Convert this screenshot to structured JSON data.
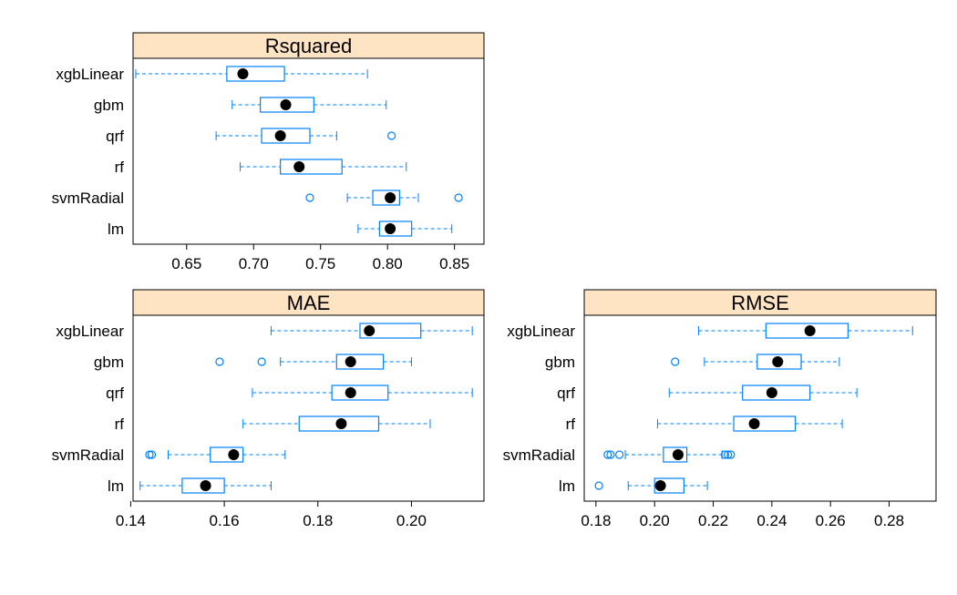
{
  "strip_color": "#ffe4c4",
  "box_color": "#0080ff",
  "dot_color": "#000000",
  "models": [
    "xgbLinear",
    "gbm",
    "qrf",
    "rf",
    "svmRadial",
    "lm"
  ],
  "chart_data": [
    {
      "type": "box",
      "title": "Rsquared",
      "xlim": [
        0.61,
        0.872
      ],
      "ticks": [
        0.65,
        0.7,
        0.75,
        0.8,
        0.85
      ],
      "tick_labels": [
        "0.65",
        "0.70",
        "0.75",
        "0.80",
        "0.85"
      ],
      "series": [
        {
          "name": "xgbLinear",
          "whisker_low": 0.612,
          "q1": 0.68,
          "median": 0.692,
          "q3": 0.723,
          "whisker_high": 0.785,
          "outliers": []
        },
        {
          "name": "gbm",
          "whisker_low": 0.684,
          "q1": 0.705,
          "median": 0.724,
          "q3": 0.745,
          "whisker_high": 0.799,
          "outliers": []
        },
        {
          "name": "qrf",
          "whisker_low": 0.672,
          "q1": 0.706,
          "median": 0.72,
          "q3": 0.742,
          "whisker_high": 0.762,
          "outliers": [
            0.803
          ]
        },
        {
          "name": "rf",
          "whisker_low": 0.69,
          "q1": 0.72,
          "median": 0.734,
          "q3": 0.766,
          "whisker_high": 0.814,
          "outliers": []
        },
        {
          "name": "svmRadial",
          "whisker_low": 0.77,
          "q1": 0.789,
          "median": 0.802,
          "q3": 0.809,
          "whisker_high": 0.823,
          "outliers": [
            0.742,
            0.853
          ]
        },
        {
          "name": "lm",
          "whisker_low": 0.778,
          "q1": 0.794,
          "median": 0.802,
          "q3": 0.818,
          "whisker_high": 0.848,
          "outliers": []
        }
      ]
    },
    {
      "type": "box",
      "title": "MAE",
      "xlim": [
        0.1405,
        0.2155
      ],
      "ticks": [
        0.14,
        0.16,
        0.18,
        0.2
      ],
      "tick_labels": [
        "0.14",
        "0.16",
        "0.18",
        "0.20"
      ],
      "series": [
        {
          "name": "xgbLinear",
          "whisker_low": 0.17,
          "q1": 0.189,
          "median": 0.191,
          "q3": 0.202,
          "whisker_high": 0.213,
          "outliers": []
        },
        {
          "name": "gbm",
          "whisker_low": 0.172,
          "q1": 0.184,
          "median": 0.187,
          "q3": 0.194,
          "whisker_high": 0.2,
          "outliers": [
            0.159,
            0.168
          ]
        },
        {
          "name": "qrf",
          "whisker_low": 0.166,
          "q1": 0.183,
          "median": 0.187,
          "q3": 0.195,
          "whisker_high": 0.213,
          "outliers": []
        },
        {
          "name": "rf",
          "whisker_low": 0.164,
          "q1": 0.176,
          "median": 0.185,
          "q3": 0.193,
          "whisker_high": 0.204,
          "outliers": []
        },
        {
          "name": "svmRadial",
          "whisker_low": 0.148,
          "q1": 0.157,
          "median": 0.162,
          "q3": 0.164,
          "whisker_high": 0.173,
          "outliers": [
            0.144,
            0.1445
          ]
        },
        {
          "name": "lm",
          "whisker_low": 0.142,
          "q1": 0.151,
          "median": 0.156,
          "q3": 0.16,
          "whisker_high": 0.17,
          "outliers": []
        }
      ]
    },
    {
      "type": "box",
      "title": "RMSE",
      "xlim": [
        0.176,
        0.296
      ],
      "ticks": [
        0.18,
        0.2,
        0.22,
        0.24,
        0.26,
        0.28
      ],
      "tick_labels": [
        "0.18",
        "0.20",
        "0.22",
        "0.24",
        "0.26",
        "0.28"
      ],
      "series": [
        {
          "name": "xgbLinear",
          "whisker_low": 0.215,
          "q1": 0.238,
          "median": 0.253,
          "q3": 0.266,
          "whisker_high": 0.288,
          "outliers": []
        },
        {
          "name": "gbm",
          "whisker_low": 0.217,
          "q1": 0.235,
          "median": 0.242,
          "q3": 0.25,
          "whisker_high": 0.263,
          "outliers": [
            0.207
          ]
        },
        {
          "name": "qrf",
          "whisker_low": 0.205,
          "q1": 0.23,
          "median": 0.24,
          "q3": 0.253,
          "whisker_high": 0.269,
          "outliers": []
        },
        {
          "name": "rf",
          "whisker_low": 0.201,
          "q1": 0.227,
          "median": 0.234,
          "q3": 0.248,
          "whisker_high": 0.264,
          "outliers": []
        },
        {
          "name": "svmRadial",
          "whisker_low": 0.19,
          "q1": 0.203,
          "median": 0.208,
          "q3": 0.211,
          "whisker_high": 0.223,
          "outliers": [
            0.184,
            0.185,
            0.188,
            0.224,
            0.225,
            0.226
          ]
        },
        {
          "name": "lm",
          "whisker_low": 0.191,
          "q1": 0.2,
          "median": 0.202,
          "q3": 0.21,
          "whisker_high": 0.218,
          "outliers": [
            0.181
          ]
        }
      ]
    }
  ]
}
